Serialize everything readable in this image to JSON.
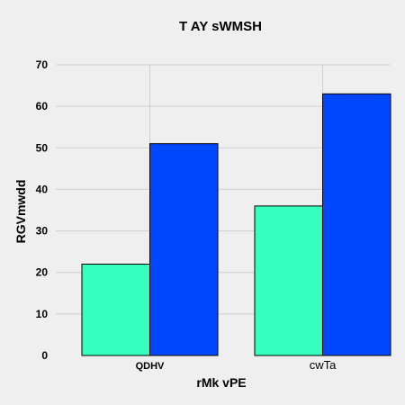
{
  "chart_data": {
    "type": "bar",
    "title": "T  AY sWMSH",
    "xlabel": "rMk vPE",
    "ylabel": "RGVmwdd",
    "categories": [
      "QDHV",
      "cwTa"
    ],
    "series": [
      {
        "values": [
          22,
          36
        ],
        "color": "#36ffbe"
      },
      {
        "values": [
          51,
          63
        ],
        "color": "#0047ff"
      }
    ],
    "ylim": [
      0,
      70
    ],
    "yticks": [
      0,
      10,
      20,
      30,
      40,
      50,
      60,
      70
    ],
    "grid": true
  }
}
